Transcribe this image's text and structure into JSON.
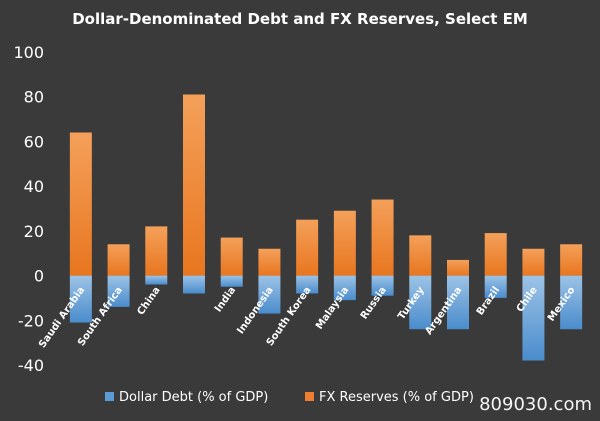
{
  "chart_data": {
    "type": "bar",
    "title": "Dollar-Denominated Debt and FX Reserves, Select EM",
    "categories": [
      "Saudi Arabia",
      "South Africa",
      "China",
      "",
      "India",
      "Indonesia",
      "South Korea",
      "Malaysia",
      "Russia",
      "Turkey",
      "Argentina",
      "Brazil",
      "Chile",
      "Mexico"
    ],
    "series": [
      {
        "name": "Dollar Debt (% of GDP)",
        "color": "#5b9bd5",
        "values": [
          -21,
          -14,
          -4,
          -8,
          -5,
          -17,
          -8,
          -11,
          -9,
          -24,
          -24,
          -10,
          -38,
          -24
        ]
      },
      {
        "name": "FX Reserves (% of GDP)",
        "color": "#ed7d31",
        "values": [
          64,
          14,
          22,
          81,
          17,
          12,
          25,
          29,
          34,
          18,
          7,
          19,
          12,
          14
        ]
      }
    ],
    "ylim": [
      -40,
      100
    ],
    "yticks": [
      -40,
      -20,
      0,
      20,
      40,
      60,
      80,
      100
    ],
    "grid": false,
    "legend": "bottom",
    "watermark": "809030.com"
  }
}
